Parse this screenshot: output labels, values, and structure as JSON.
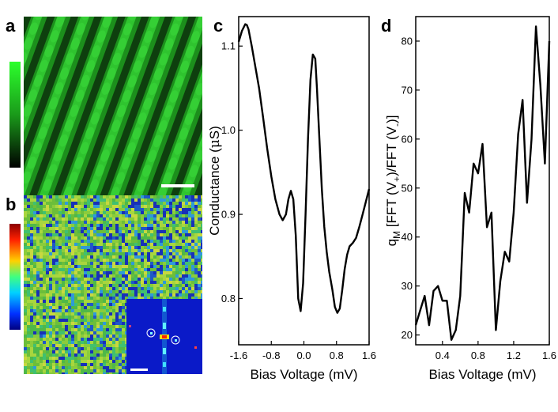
{
  "panels": {
    "a": "a",
    "b": "b",
    "c": "c",
    "d": "d"
  },
  "colors": {
    "topo_green": "#1fa31f",
    "topo_dark": "#0b2a0b",
    "map_green": "#79c64a",
    "map_blue": "#1b2fb8",
    "inset_bg": "#0a1ac8",
    "curve": "#000000"
  },
  "chart_data": [
    {
      "panel": "c",
      "type": "line",
      "xlabel": "Bias Voltage (mV)",
      "ylabel": "Conductance (μS)",
      "ylabel_parts": {
        "before": "Conductance (",
        "mu": "μ",
        "after": "S)"
      },
      "xlim": [
        -1.6,
        1.6
      ],
      "ylim": [
        0.745,
        1.135
      ],
      "xticks": [
        -1.6,
        -0.8,
        0.0,
        0.8,
        1.6
      ],
      "xtick_labels": [
        "-1.6",
        "-0.8",
        "0.0",
        "0.8",
        "1.6"
      ],
      "yticks": [
        0.8,
        0.9,
        1.0,
        1.1
      ],
      "ytick_labels": [
        "0.8",
        "0.9",
        "1.0",
        "1.1"
      ],
      "series": [
        {
          "x": [
            -1.6,
            -1.52,
            -1.44,
            -1.4,
            -1.36,
            -1.28,
            -1.2,
            -1.1,
            -1.0,
            -0.9,
            -0.8,
            -0.7,
            -0.6,
            -0.52,
            -0.44,
            -0.38,
            -0.32,
            -0.26,
            -0.2,
            -0.14,
            -0.08,
            -0.02,
            0.04,
            0.1,
            0.16,
            0.22,
            0.28,
            0.32,
            0.38,
            0.44,
            0.5,
            0.56,
            0.62,
            0.7,
            0.76,
            0.82,
            0.88,
            0.94,
            1.0,
            1.06,
            1.12,
            1.2,
            1.28,
            1.36,
            1.44,
            1.52,
            1.6
          ],
          "y": [
            1.105,
            1.118,
            1.126,
            1.125,
            1.12,
            1.1,
            1.078,
            1.05,
            1.015,
            0.978,
            0.945,
            0.918,
            0.9,
            0.893,
            0.9,
            0.918,
            0.928,
            0.918,
            0.875,
            0.8,
            0.785,
            0.818,
            0.9,
            0.99,
            1.06,
            1.09,
            1.085,
            1.05,
            0.99,
            0.93,
            0.885,
            0.855,
            0.832,
            0.81,
            0.79,
            0.783,
            0.788,
            0.81,
            0.835,
            0.852,
            0.862,
            0.866,
            0.872,
            0.885,
            0.9,
            0.915,
            0.93
          ]
        }
      ]
    },
    {
      "panel": "d",
      "type": "line",
      "xlabel": "Bias Voltage (mV)",
      "ylabel": "qM [FFT (V+)/FFT (V-)]",
      "ylabel_parts": {
        "q": "q",
        "sub_m": "M",
        "mid1": " [FFT (V",
        "sub_plus": "+",
        "mid2": ")/FFT (V",
        "sub_minus": "-",
        "end": ")]"
      },
      "xlim": [
        0.1,
        1.6
      ],
      "ylim": [
        18,
        85
      ],
      "xticks": [
        0.4,
        0.8,
        1.2,
        1.6
      ],
      "xtick_labels": [
        "0.4",
        "0.8",
        "1.2",
        "1.6"
      ],
      "yticks": [
        20,
        30,
        40,
        50,
        60,
        70,
        80
      ],
      "ytick_labels": [
        "20",
        "30",
        "40",
        "50",
        "60",
        "70",
        "80"
      ],
      "series": [
        {
          "x": [
            0.1,
            0.15,
            0.2,
            0.25,
            0.3,
            0.35,
            0.4,
            0.45,
            0.5,
            0.55,
            0.6,
            0.65,
            0.7,
            0.75,
            0.8,
            0.85,
            0.9,
            0.95,
            1.0,
            1.05,
            1.1,
            1.15,
            1.2,
            1.25,
            1.3,
            1.35,
            1.4,
            1.45,
            1.5,
            1.55,
            1.6
          ],
          "y": [
            22,
            25,
            28,
            22,
            29,
            30,
            27,
            27,
            19,
            21,
            28,
            49,
            45,
            55,
            53,
            59,
            42,
            45,
            21,
            31,
            37,
            35,
            45,
            61,
            68,
            47,
            60,
            83,
            71,
            55,
            80
          ]
        }
      ]
    }
  ],
  "images": {
    "topography": "a",
    "map": "b",
    "inset": "fft"
  }
}
